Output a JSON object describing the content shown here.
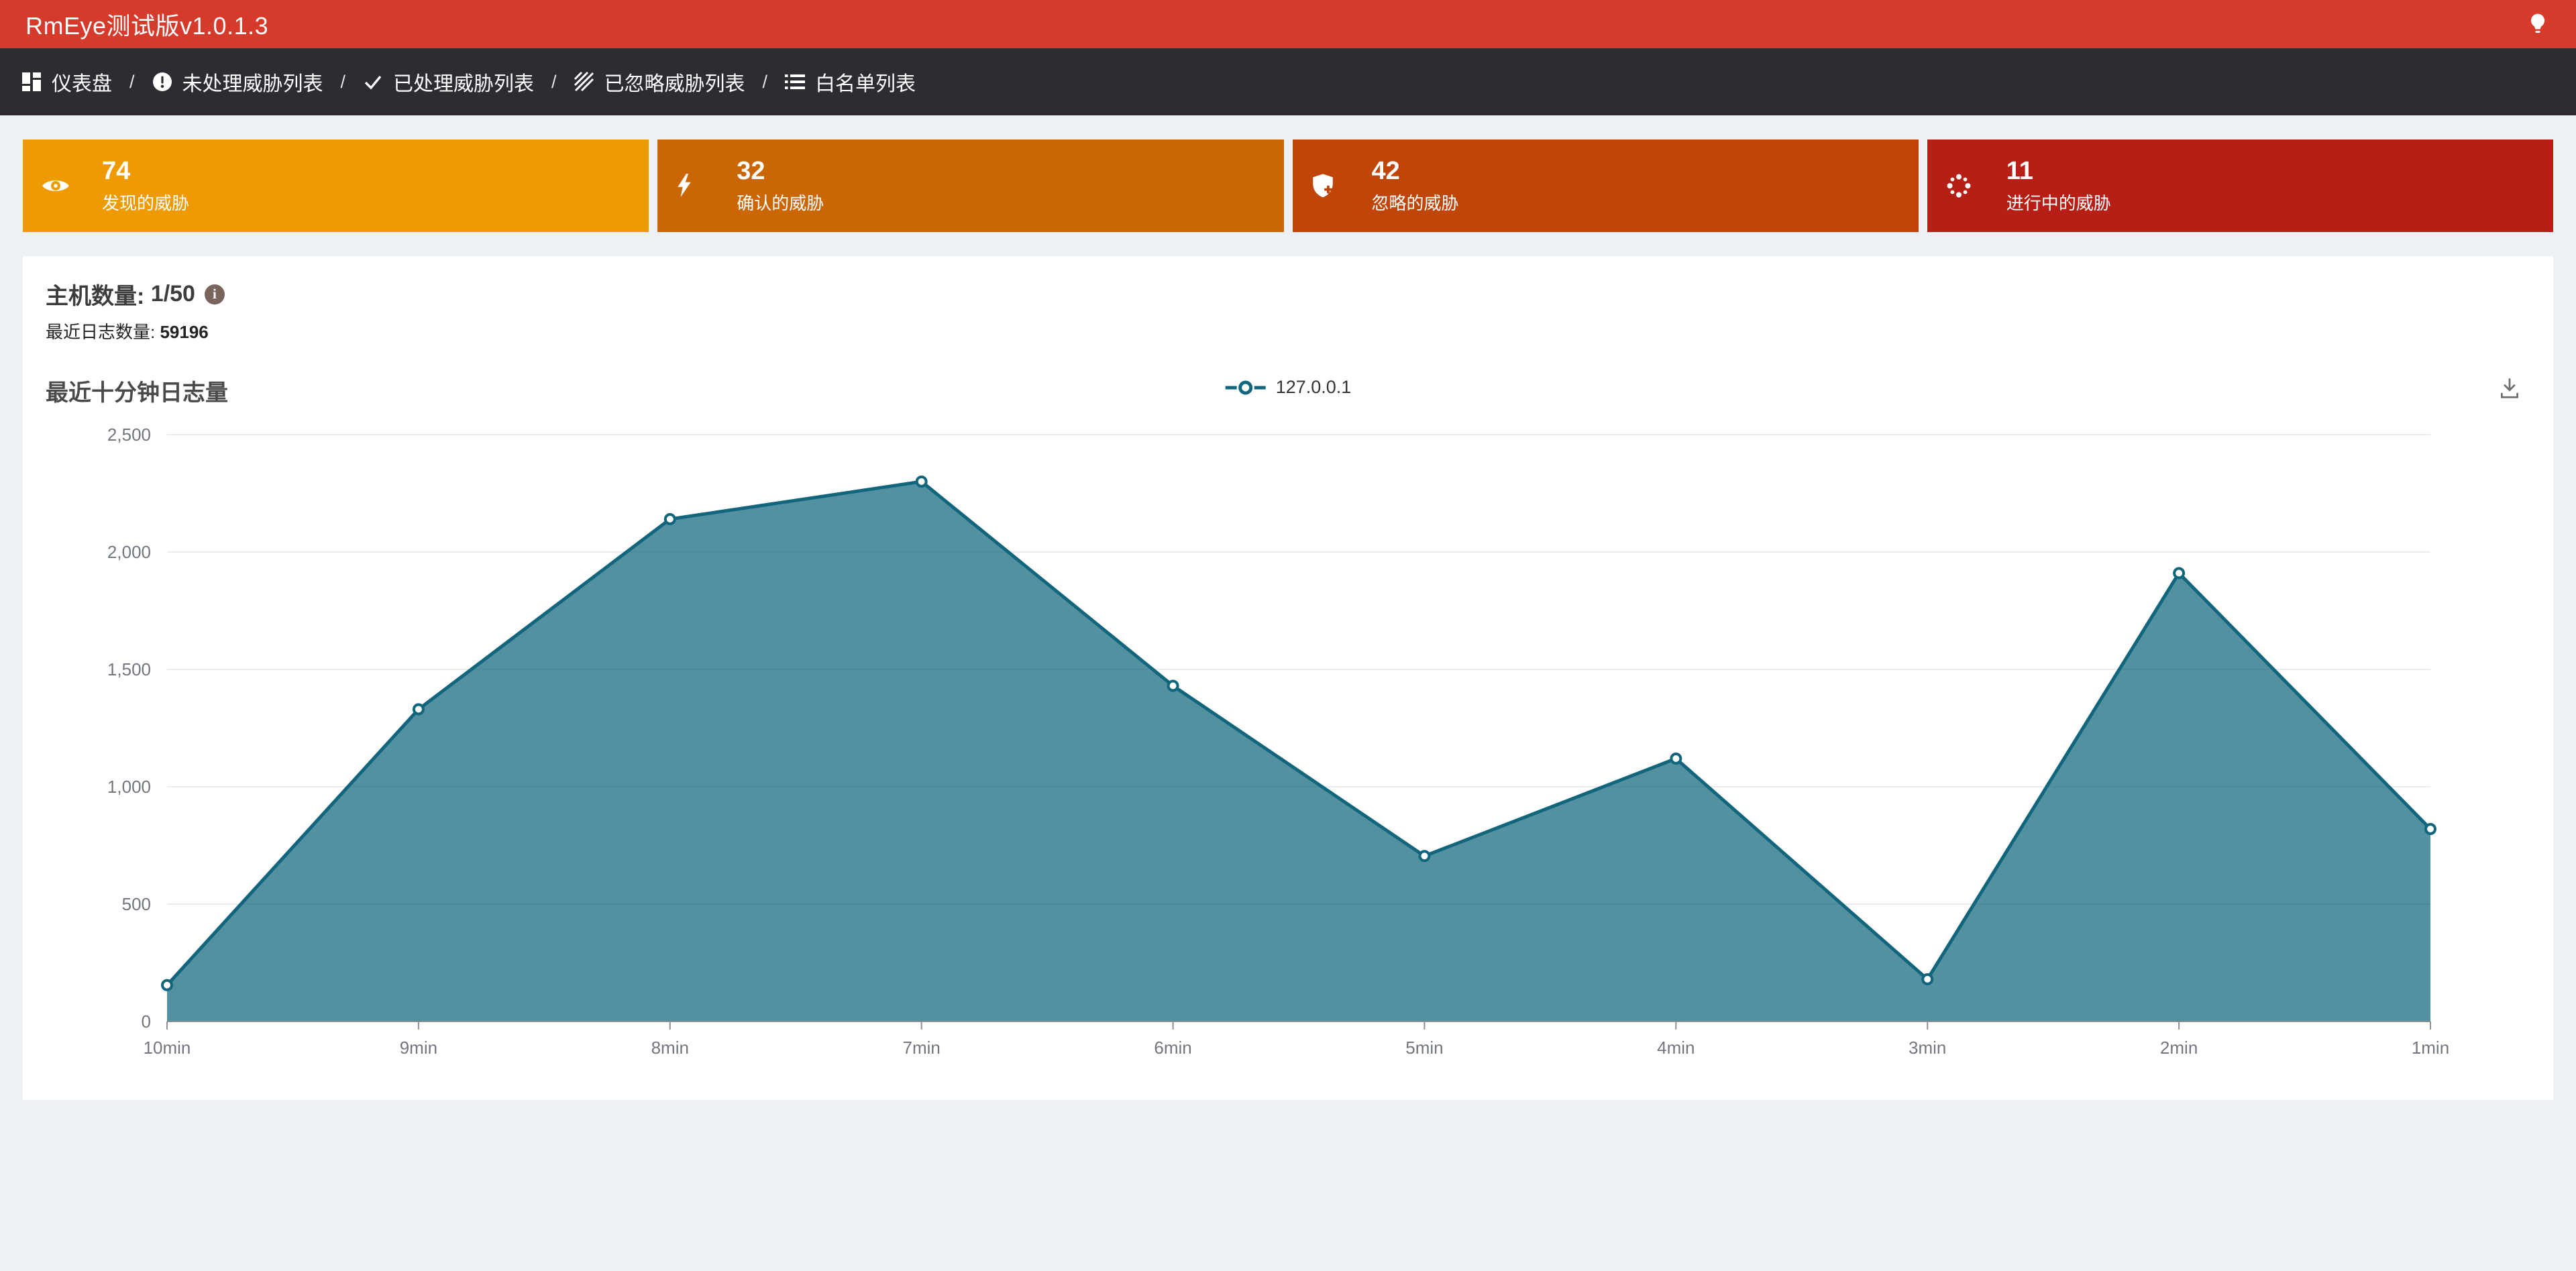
{
  "header": {
    "title": "RmEye测试版v1.0.1.3",
    "bulb_icon": "lightbulb-icon"
  },
  "nav": {
    "separator": "/",
    "items": [
      {
        "label": "仪表盘",
        "icon": "dashboard-icon"
      },
      {
        "label": "未处理威胁列表",
        "icon": "exclamation-circle-icon"
      },
      {
        "label": "已处理威胁列表",
        "icon": "check-icon"
      },
      {
        "label": "已忽略威胁列表",
        "icon": "diagonal-stripes-icon"
      },
      {
        "label": "白名单列表",
        "icon": "list-icon"
      }
    ]
  },
  "stats": [
    {
      "value": "74",
      "label": "发现的威胁",
      "color": "#ee9a02",
      "icon": "eye-icon"
    },
    {
      "value": "32",
      "label": "确认的威胁",
      "color": "#cb6604",
      "icon": "lightning-icon"
    },
    {
      "value": "42",
      "label": "忽略的威胁",
      "color": "#c04508",
      "icon": "shield-plus-icon"
    },
    {
      "value": "11",
      "label": "进行中的威胁",
      "color": "#b71f16",
      "icon": "spinner-icon"
    }
  ],
  "panel": {
    "host_label": "主机数量:",
    "host_value": "1/50",
    "log_label": "最近日志数量:",
    "log_value": "59196"
  },
  "chart_data": {
    "type": "area",
    "title": "最近十分钟日志量",
    "categories": [
      "10min",
      "9min",
      "8min",
      "7min",
      "6min",
      "5min",
      "4min",
      "3min",
      "2min",
      "1min"
    ],
    "series": [
      {
        "name": "127.0.0.1",
        "values": [
          155,
          1330,
          2140,
          2300,
          1430,
          705,
          1120,
          180,
          1910,
          820
        ]
      }
    ],
    "xlabel": "",
    "ylabel": "",
    "ylim": [
      0,
      2500
    ],
    "yticks": [
      0,
      500,
      1000,
      1500,
      2000,
      2500
    ],
    "ytick_labels": [
      "0",
      "500",
      "1,000",
      "1,500",
      "2,000",
      "2,500"
    ],
    "grid": true,
    "legend_position": "top-center",
    "line_color": "#11657c",
    "fill_color": "#4d8f9e",
    "toolbox": [
      "save-as-image"
    ]
  },
  "colors": {
    "header_bg": "#d63a2b",
    "nav_bg": "#2f2b32",
    "page_bg": "#edf1f5",
    "panel_bg": "#ffffff",
    "axis_label": "#72767e",
    "gridline": "#e8ecf1",
    "info_icon_bg": "#7a655c"
  }
}
